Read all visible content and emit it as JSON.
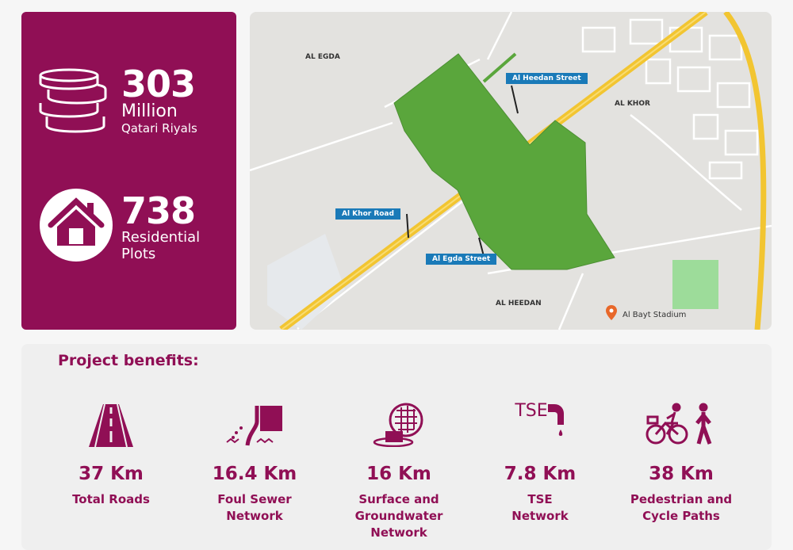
{
  "stats": [
    {
      "value": "303",
      "line1": "Million",
      "line2": "Qatari Riyals",
      "icon": "coins-icon"
    },
    {
      "value": "738",
      "line1": "Residential",
      "line2": "Plots",
      "icon": "house-icon"
    }
  ],
  "map": {
    "areas": [
      "AL EGDA",
      "AL KHOR",
      "AL HEEDAN"
    ],
    "streets": [
      "Al Heedan Street",
      "Al Khor Road",
      "Al Egda Street"
    ],
    "poi": "Al Bayt Stadium",
    "colors": {
      "project": "#5aa63c",
      "highway": "#f2c531",
      "label": "#1a7ab8",
      "pin": "#e8682a"
    }
  },
  "benefits": {
    "title": "Project benefits:",
    "items": [
      {
        "value": "37 Km",
        "label": "Total Roads",
        "icon": "road-icon"
      },
      {
        "value": "16.4 Km",
        "label": "Foul Sewer\nNetwork",
        "icon": "sewer-pipe-icon"
      },
      {
        "value": "16 Km",
        "label": "Surface and\nGroundwater\nNetwork",
        "icon": "drain-icon"
      },
      {
        "value": "7.8 Km",
        "label": "TSE\nNetwork",
        "icon": "tse-tap-icon",
        "icon_text": "TSE"
      },
      {
        "value": "38 Km",
        "label": "Pedestrian and\nCycle Paths",
        "icon": "cyclist-pedestrian-icon"
      }
    ]
  },
  "colors": {
    "brand": "#900f55"
  }
}
